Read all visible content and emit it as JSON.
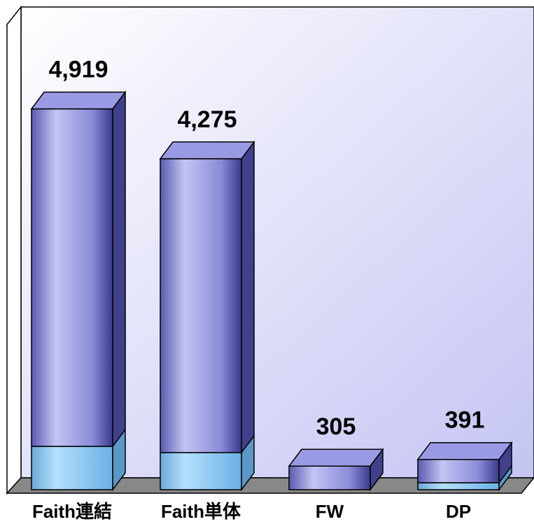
{
  "chart_data": {
    "type": "bar3d_stacked",
    "categories": [
      "Faith連結",
      "Faith単体",
      "FW",
      "DP"
    ],
    "series": [
      {
        "color": "#8ecbf2",
        "values": [
          560,
          480,
          0,
          90
        ]
      },
      {
        "color": "#8c8ee0",
        "values": [
          4359,
          3795,
          305,
          301
        ]
      }
    ],
    "totals": [
      4919,
      4275,
      305,
      391
    ],
    "total_labels": [
      "4,919",
      "4,275",
      "305",
      "391"
    ],
    "ylim": [
      0,
      6000
    ]
  }
}
